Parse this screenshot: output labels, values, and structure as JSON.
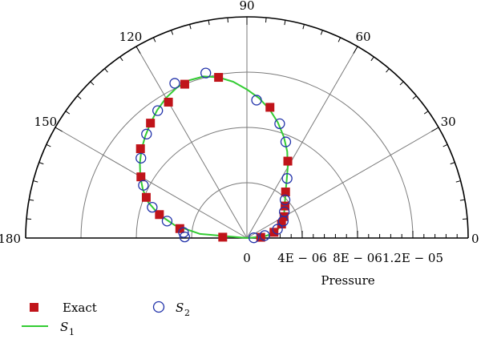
{
  "chart_data": {
    "type": "polar",
    "title": "",
    "radial_axis": {
      "label": "Pressure",
      "range": [
        0,
        1.6e-05
      ],
      "gridline_radii": [
        4e-06,
        8e-06,
        1.2e-05
      ],
      "tick_labels": [
        "0",
        "4E − 06",
        "8E − 06",
        "1.2E − 05"
      ]
    },
    "angular_axis": {
      "range_degrees": [
        0,
        180
      ],
      "spokes_degrees": [
        30,
        60,
        90,
        120,
        150
      ],
      "tick_labels": [
        "0",
        "30",
        "60",
        "90",
        "120",
        "150",
        "180"
      ]
    },
    "grid": true,
    "legend": {
      "placement": "bottom-left",
      "entries": [
        {
          "label": "Exact",
          "marker": "square",
          "color": "#c0141a"
        },
        {
          "label": "S",
          "subscript": "2",
          "marker": "open-circle",
          "color": "#2233aa"
        },
        {
          "label": "S",
          "subscript": "1",
          "marker": "line",
          "color": "#33cc33"
        }
      ]
    },
    "series": [
      {
        "name": "Exact",
        "marker": "square",
        "color": "#c0141a",
        "points": [
          {
            "theta_deg": 3,
            "r": 1e-06
          },
          {
            "theta_deg": 12,
            "r": 2e-06
          },
          {
            "theta_deg": 22,
            "r": 2.7e-06
          },
          {
            "theta_deg": 30,
            "r": 3.1e-06
          },
          {
            "theta_deg": 40,
            "r": 3.6e-06
          },
          {
            "theta_deg": 50,
            "r": 4.35e-06
          },
          {
            "theta_deg": 62,
            "r": 6.3e-06
          },
          {
            "theta_deg": 80,
            "r": 9.6e-06
          },
          {
            "theta_deg": 100,
            "r": 1.18e-05
          },
          {
            "theta_deg": 112,
            "r": 1.2e-05
          },
          {
            "theta_deg": 120,
            "r": 1.135e-05
          },
          {
            "theta_deg": 130,
            "r": 1.085e-05
          },
          {
            "theta_deg": 140,
            "r": 1.005e-05
          },
          {
            "theta_deg": 150,
            "r": 8.85e-06
          },
          {
            "theta_deg": 158,
            "r": 7.85e-06
          },
          {
            "theta_deg": 165,
            "r": 6.55e-06
          },
          {
            "theta_deg": 172,
            "r": 4.9e-06
          },
          {
            "theta_deg": 178,
            "r": 1.75e-06
          }
        ]
      },
      {
        "name": "S2",
        "marker": "open-circle",
        "color": "#2233aa",
        "points": [
          {
            "theta_deg": 2,
            "r": 5e-07
          },
          {
            "theta_deg": 8,
            "r": 1.3e-06
          },
          {
            "theta_deg": 16,
            "r": 2.3e-06
          },
          {
            "theta_deg": 25,
            "r": 2.9e-06
          },
          {
            "theta_deg": 35,
            "r": 3.3e-06
          },
          {
            "theta_deg": 45,
            "r": 3.9e-06
          },
          {
            "theta_deg": 56,
            "r": 5.2e-06
          },
          {
            "theta_deg": 68,
            "r": 7.5e-06
          },
          {
            "theta_deg": 74,
            "r": 8.6e-06
          },
          {
            "theta_deg": 86,
            "r": 1e-05
          },
          {
            "theta_deg": 104,
            "r": 1.23e-05
          },
          {
            "theta_deg": 115,
            "r": 1.235e-05
          },
          {
            "theta_deg": 125,
            "r": 1.125e-05
          },
          {
            "theta_deg": 134,
            "r": 1.045e-05
          },
          {
            "theta_deg": 143,
            "r": 9.6e-06
          },
          {
            "theta_deg": 153,
            "r": 8.4e-06
          },
          {
            "theta_deg": 162,
            "r": 7.2e-06
          },
          {
            "theta_deg": 168,
            "r": 5.9e-06
          },
          {
            "theta_deg": 175,
            "r": 4.6e-06
          },
          {
            "theta_deg": 179,
            "r": 4.5e-06
          }
        ]
      },
      {
        "name": "S1",
        "marker": "line",
        "color": "#33cc33",
        "points": [
          {
            "theta_deg": 0,
            "r": 0
          },
          {
            "theta_deg": 5,
            "r": 1.25e-06
          },
          {
            "theta_deg": 10,
            "r": 1.9e-06
          },
          {
            "theta_deg": 15,
            "r": 2.3e-06
          },
          {
            "theta_deg": 20,
            "r": 2.6e-06
          },
          {
            "theta_deg": 25,
            "r": 2.85e-06
          },
          {
            "theta_deg": 30,
            "r": 3.1e-06
          },
          {
            "theta_deg": 35,
            "r": 3.3e-06
          },
          {
            "theta_deg": 40,
            "r": 3.55e-06
          },
          {
            "theta_deg": 45,
            "r": 3.9e-06
          },
          {
            "theta_deg": 50,
            "r": 4.35e-06
          },
          {
            "theta_deg": 55,
            "r": 5e-06
          },
          {
            "theta_deg": 60,
            "r": 5.9e-06
          },
          {
            "theta_deg": 65,
            "r": 6.9e-06
          },
          {
            "theta_deg": 70,
            "r": 7.8e-06
          },
          {
            "theta_deg": 75,
            "r": 8.65e-06
          },
          {
            "theta_deg": 80,
            "r": 9.45e-06
          },
          {
            "theta_deg": 85,
            "r": 1.015e-05
          },
          {
            "theta_deg": 90,
            "r": 1.075e-05
          },
          {
            "theta_deg": 95,
            "r": 1.135e-05
          },
          {
            "theta_deg": 100,
            "r": 1.18e-05
          },
          {
            "theta_deg": 105,
            "r": 1.21e-05
          },
          {
            "theta_deg": 110,
            "r": 1.215e-05
          },
          {
            "theta_deg": 115,
            "r": 1.2e-05
          },
          {
            "theta_deg": 120,
            "r": 1.17e-05
          },
          {
            "theta_deg": 125,
            "r": 1.13e-05
          },
          {
            "theta_deg": 130,
            "r": 1.085e-05
          },
          {
            "theta_deg": 135,
            "r": 1.04e-05
          },
          {
            "theta_deg": 140,
            "r": 9.95e-06
          },
          {
            "theta_deg": 145,
            "r": 9.45e-06
          },
          {
            "theta_deg": 150,
            "r": 8.9e-06
          },
          {
            "theta_deg": 155,
            "r": 8.3e-06
          },
          {
            "theta_deg": 160,
            "r": 7.6e-06
          },
          {
            "theta_deg": 165,
            "r": 6.6e-06
          },
          {
            "theta_deg": 170,
            "r": 5.3e-06
          },
          {
            "theta_deg": 175,
            "r": 3.4e-06
          },
          {
            "theta_deg": 180,
            "r": 0
          }
        ]
      }
    ]
  }
}
